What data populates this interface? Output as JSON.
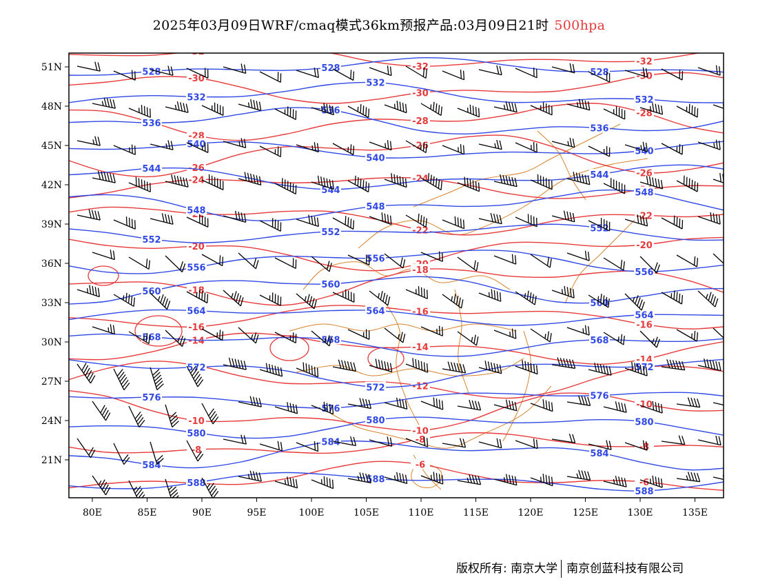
{
  "title": {
    "main": "2025年03月09日WRF/cmaq模式36km预报产品:03月09日21时",
    "level": "500hpa",
    "level_color": "#e8393a"
  },
  "axes": {
    "lon_labels": [
      "80E",
      "85E",
      "90E",
      "95E",
      "100E",
      "105E",
      "110E",
      "115E",
      "120E",
      "125E",
      "130E",
      "135E"
    ],
    "lat_labels": [
      "51N",
      "48N",
      "45N",
      "42N",
      "39N",
      "36N",
      "33N",
      "30N",
      "27N",
      "24N",
      "21N"
    ]
  },
  "colors": {
    "height_contour": "#2f48e6",
    "temperature_contour": "#e8393a",
    "border": "#d9822b",
    "wind_barb": "#000000",
    "frame": "#000000"
  },
  "contours": {
    "height_values": [
      "528",
      "532",
      "536",
      "540",
      "544",
      "548",
      "552",
      "556",
      "560",
      "564",
      "568",
      "572",
      "576",
      "580",
      "584",
      "588"
    ],
    "temperature_values": [
      "-32",
      "-30",
      "-28",
      "-26",
      "-24",
      "-22",
      "-20",
      "-18",
      "-16",
      "-14",
      "-12",
      "-10",
      "-8",
      "-6"
    ]
  },
  "layers": [
    "geopotential-height-contours",
    "temperature-contours",
    "wind-barbs",
    "province-borders"
  ],
  "copyright": {
    "left": "版权所有: 南京大学",
    "right": "南京创蓝科技有限公司"
  }
}
